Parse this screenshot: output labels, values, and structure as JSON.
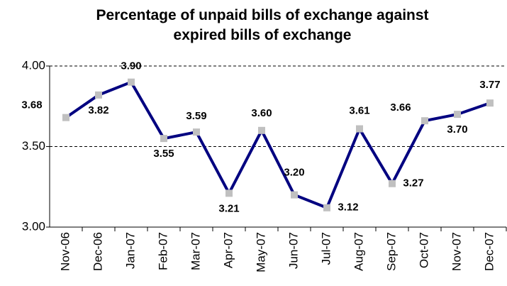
{
  "chart_data": {
    "type": "line",
    "title": "Percentage of unpaid bills of exchange against expired bills of exchange",
    "categories": [
      "Nov-06",
      "Dec-06",
      "Jan-07",
      "Feb-07",
      "Mar-07",
      "Apr-07",
      "May-07",
      "Jun-07",
      "Jul-07",
      "Aug-07",
      "Sep-07",
      "Oct-07",
      "Nov-07",
      "Dec-07"
    ],
    "series": [
      {
        "color": "#000080",
        "marker_color": "#c0c0c0",
        "values": [
          3.68,
          3.82,
          3.9,
          3.55,
          3.59,
          3.21,
          3.6,
          3.2,
          3.12,
          3.61,
          3.27,
          3.66,
          3.7,
          3.77
        ],
        "value_labels": [
          "3.68",
          "3.82",
          "3.90",
          "3.55",
          "3.59",
          "3.21",
          "3.60",
          "3.20",
          "3.12",
          "3.61",
          "3.27",
          "3.66",
          "3.70",
          "3.77"
        ]
      }
    ],
    "ylim": [
      3,
      4
    ],
    "yticks": [
      {
        "value": 3,
        "label": "3.00"
      },
      {
        "value": 3.5,
        "label": "3.50"
      },
      {
        "value": 4,
        "label": "4.00"
      }
    ],
    "grid": true
  }
}
